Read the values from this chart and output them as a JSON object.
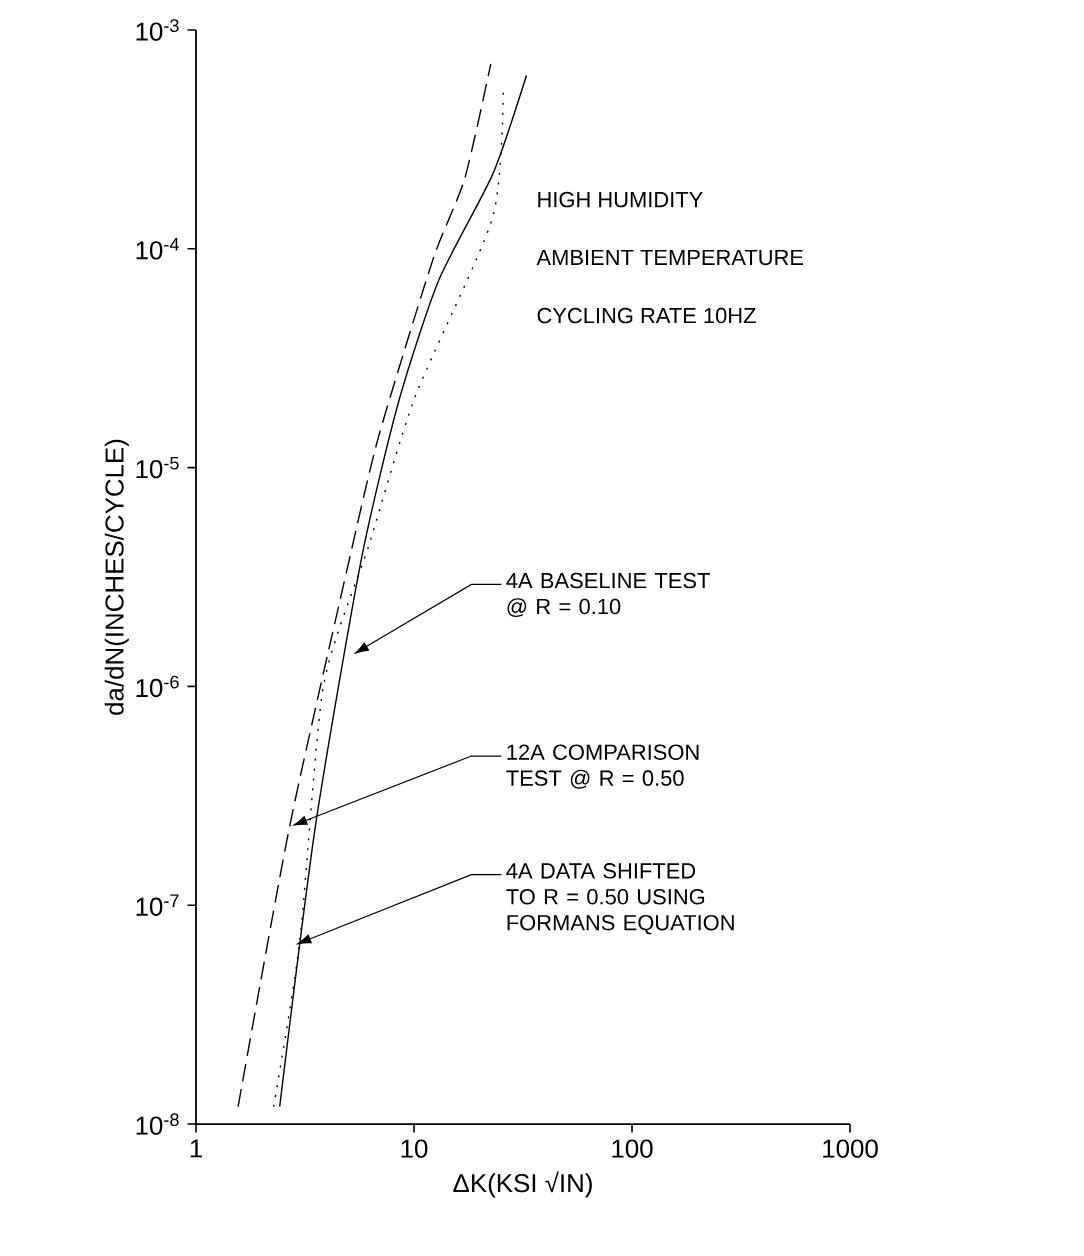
{
  "chart_data": {
    "type": "line",
    "xlabel": "ΔK(KSI √IN)",
    "ylabel": "da/dN(INCHES/CYCLE)",
    "log": "xy",
    "xlim": [
      1,
      1000
    ],
    "ylim": [
      1e-08,
      0.001
    ],
    "xticks": [
      1,
      10,
      100,
      1000
    ],
    "yticks": [
      {
        "value": 1e-08,
        "label": "10$^{-8}$"
      },
      {
        "value": 1e-07,
        "label": "10$^{-7}$"
      },
      {
        "value": 1e-06,
        "label": "10$^{-6}$"
      },
      {
        "value": 1e-05,
        "label": "10$^{-5}$"
      },
      {
        "value": 0.0001,
        "label": "10$^{-4}$"
      },
      {
        "value": 0.001,
        "label": "10$^{-3}$"
      }
    ],
    "grid": false,
    "marker": "none",
    "series": [
      {
        "color": "#000000",
        "line_style": "dashed",
        "x": [
          1.56,
          2.69,
          5.05,
          6.9,
          12.2,
          17.1,
          22.5
        ],
        "values": [
          1.2e-08,
          2.3e-07,
          3.8e-06,
          1.4e-05,
          8.9e-05,
          0.00021,
          0.0007
        ]
      },
      {
        "color": "#000000",
        "line_style": "solid",
        "x": [
          2.42,
          3.53,
          5.73,
          8.5,
          13,
          23,
          32.8
        ],
        "values": [
          1.2e-08,
          2.3e-07,
          3.8e-06,
          2e-05,
          7.2e-05,
          0.00022,
          0.00062
        ]
      },
      {
        "color": "#000000",
        "line_style": "dotted",
        "x": [
          2.27,
          2.99,
          3.84,
          6.2,
          10.1,
          23,
          25.7
        ],
        "values": [
          1.2e-08,
          6.8e-08,
          1e-06,
          4.4e-06,
          2.1e-05,
          0.00014,
          0.00055
        ]
      }
    ],
    "annotations": [
      "HIGH HUMIDITY",
      "AMBIENT TEMPERATURE",
      "CYCLING RATE 10HZ",
      {
        "text": "4A BASELINE TEST @ R = 0.10",
        "x": 5.26,
        "y": 1.4e-06
      },
      {
        "text": "12A COMPARISON TEST @ R = 0.50",
        "x": 2.74,
        "y": 2.3e-07
      },
      {
        "text": "4A DATA SHIFTED TO R = 0.50 USING FORMANS EQUATION",
        "x": 2.86,
        "y": 6.6e-08
      }
    ]
  }
}
